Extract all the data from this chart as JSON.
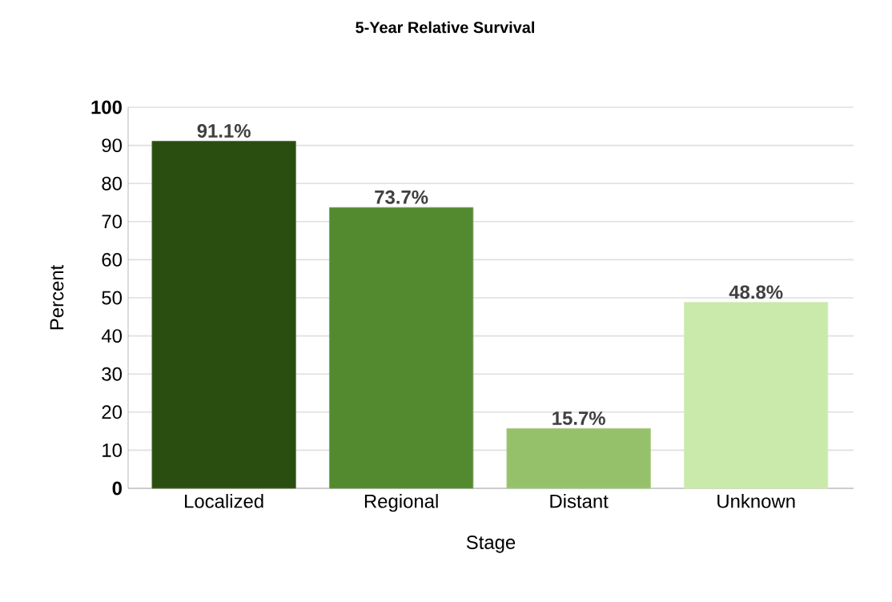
{
  "chart_data": {
    "type": "bar",
    "title": "5-Year Relative Survival",
    "xlabel": "Stage",
    "ylabel": "Percent",
    "categories": [
      "Localized",
      "Regional",
      "Distant",
      "Unknown"
    ],
    "values": [
      91.1,
      73.7,
      15.7,
      48.8
    ],
    "colors": [
      "#2a4d10",
      "#548a2f",
      "#95c16a",
      "#c9eaaa"
    ],
    "value_labels": [
      "91.1%",
      "73.7%",
      "15.7%",
      "48.8%"
    ],
    "ylim": [
      0,
      100
    ],
    "yticks": [
      0,
      10,
      20,
      30,
      40,
      50,
      60,
      70,
      80,
      90,
      100
    ],
    "grid": "y"
  }
}
